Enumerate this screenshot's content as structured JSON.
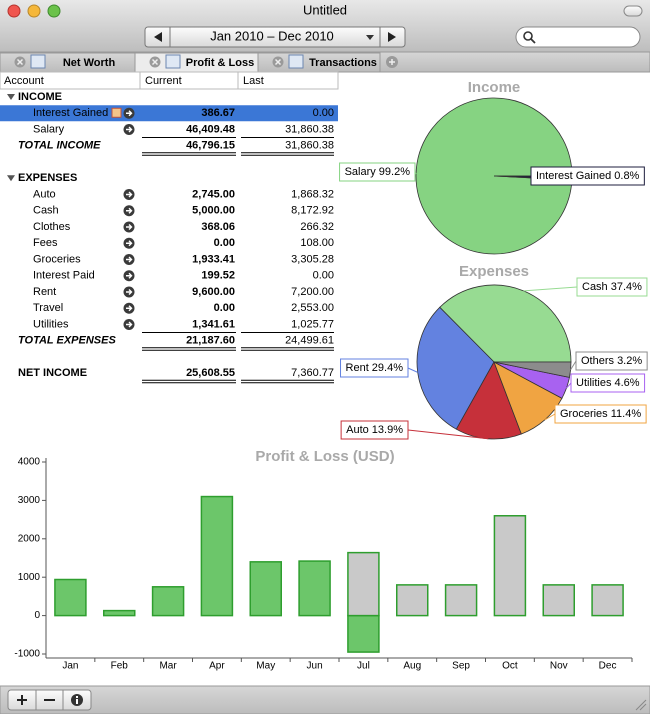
{
  "window": {
    "title": "Untitled"
  },
  "toolbar": {
    "date_range": "Jan 2010 – Dec 2010"
  },
  "tabs": [
    "Net Worth",
    "Profit & Loss",
    "Transactions"
  ],
  "table": {
    "columns": [
      "Account",
      "Current",
      "Last"
    ],
    "sections": [
      {
        "title": "INCOME",
        "rows": [
          [
            "Interest Gained",
            "386.67",
            "0.00"
          ],
          [
            "Salary",
            "46,409.48",
            "31,860.38"
          ]
        ],
        "total": [
          "TOTAL INCOME",
          "46,796.15",
          "31,860.38"
        ]
      },
      {
        "title": "EXPENSES",
        "rows": [
          [
            "Auto",
            "2,745.00",
            "1,868.32"
          ],
          [
            "Cash",
            "5,000.00",
            "8,172.92"
          ],
          [
            "Clothes",
            "368.06",
            "266.32"
          ],
          [
            "Fees",
            "0.00",
            "108.00"
          ],
          [
            "Groceries",
            "1,933.41",
            "3,305.28"
          ],
          [
            "Interest Paid",
            "199.52",
            "0.00"
          ],
          [
            "Rent",
            "9,600.00",
            "7,200.00"
          ],
          [
            "Travel",
            "0.00",
            "2,553.00"
          ],
          [
            "Utilities",
            "1,341.61",
            "1,025.77"
          ]
        ],
        "total": [
          "TOTAL EXPENSES",
          "21,187.60",
          "24,499.61"
        ]
      }
    ],
    "net": [
      "NET INCOME",
      "25,608.55",
      "7,360.77"
    ]
  },
  "chart_data": [
    {
      "type": "pie",
      "title": "Income",
      "values": [
        99.2,
        0.8
      ],
      "value_labels": [
        "Salary 99.2%",
        "Interest Gained 0.8%"
      ],
      "colors": [
        "#86d382",
        "#1c1c3c"
      ]
    },
    {
      "type": "pie",
      "title": "Expenses",
      "values": [
        37.4,
        29.4,
        13.9,
        11.4,
        4.6,
        3.2
      ],
      "value_labels": [
        "Cash 37.4%",
        "Rent 29.4%",
        "Auto 13.9%",
        "Groceries 11.4%",
        "Utilities 4.6%",
        "Others 3.2%"
      ],
      "colors": [
        "#97db92",
        "#6382e0",
        "#c6303a",
        "#f0a442",
        "#a862f0",
        "#8c8c8c"
      ]
    },
    {
      "type": "bar",
      "title": "Profit & Loss (USD)",
      "categories": [
        "Jan",
        "Feb",
        "Mar",
        "Apr",
        "May",
        "Jun",
        "Jul",
        "Aug",
        "Sep",
        "Oct",
        "Nov",
        "Dec"
      ],
      "series": [
        {
          "color": "#6cc66a",
          "edge_color": "#2e9e2e",
          "values": [
            940,
            130,
            750,
            3100,
            1400,
            1420,
            -950,
            null,
            null,
            null,
            null,
            null
          ]
        },
        {
          "color": "#c9c9c9",
          "edge_color": "#2e9e2e",
          "values": [
            null,
            null,
            null,
            null,
            null,
            null,
            1640,
            800,
            800,
            2600,
            800,
            800
          ]
        }
      ],
      "ylim": [
        -1000,
        4000
      ],
      "yticks": [
        -1000,
        0,
        1000,
        2000,
        3000,
        4000
      ]
    }
  ]
}
